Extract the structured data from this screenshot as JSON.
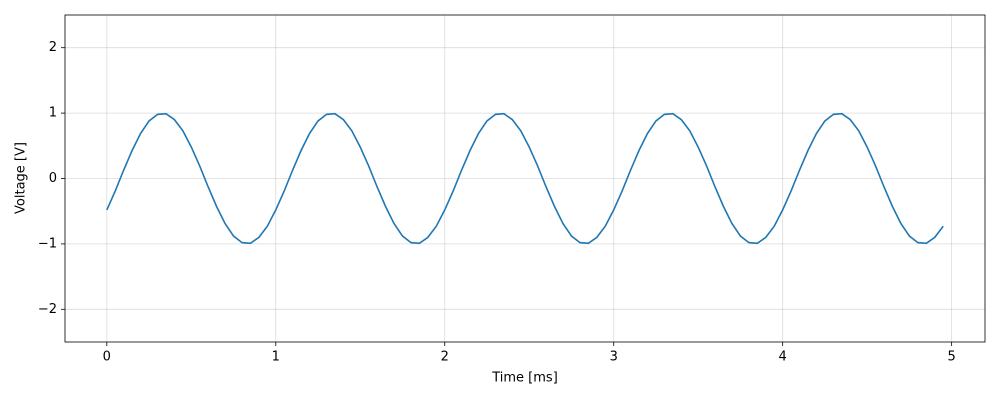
{
  "chart_data": {
    "type": "line",
    "xlabel": "Time [ms]",
    "ylabel": "Voltage [V]",
    "x": [
      0,
      0.05,
      0.1,
      0.15,
      0.2,
      0.25,
      0.3,
      0.35,
      0.4,
      0.45,
      0.5,
      0.55,
      0.6,
      0.65,
      0.7,
      0.75,
      0.8,
      0.85,
      0.9,
      0.95,
      1,
      1.05,
      1.1,
      1.15,
      1.2,
      1.25,
      1.3,
      1.35,
      1.4,
      1.45,
      1.5,
      1.55,
      1.6,
      1.65,
      1.7,
      1.75,
      1.8,
      1.85,
      1.9,
      1.95,
      2,
      2.05,
      2.1,
      2.15,
      2.2,
      2.25,
      2.3,
      2.35,
      2.4,
      2.45,
      2.5,
      2.55,
      2.6,
      2.65,
      2.7,
      2.75,
      2.8,
      2.85,
      2.9,
      2.95,
      3,
      3.05,
      3.1,
      3.15,
      3.2,
      3.25,
      3.3,
      3.35,
      3.4,
      3.45,
      3.5,
      3.55,
      3.6,
      3.65,
      3.7,
      3.75,
      3.8,
      3.85,
      3.9,
      3.95,
      4,
      4.05,
      4.1,
      4.15,
      4.2,
      4.25,
      4.3,
      4.35,
      4.4,
      4.45,
      4.5,
      4.55,
      4.6,
      4.65,
      4.7,
      4.75,
      4.8,
      4.85,
      4.9,
      4.95
    ],
    "series": [
      {
        "color": "#1f77b4",
        "values": [
          -0.48,
          -0.19,
          0.13,
          0.43,
          0.69,
          0.88,
          0.98,
          0.99,
          0.9,
          0.73,
          0.48,
          0.19,
          -0.13,
          -0.43,
          -0.69,
          -0.88,
          -0.98,
          -0.99,
          -0.9,
          -0.73,
          -0.48,
          -0.19,
          0.13,
          0.43,
          0.69,
          0.88,
          0.98,
          0.99,
          0.9,
          0.73,
          0.48,
          0.19,
          -0.13,
          -0.43,
          -0.69,
          -0.88,
          -0.98,
          -0.99,
          -0.9,
          -0.73,
          -0.48,
          -0.19,
          0.13,
          0.43,
          0.69,
          0.88,
          0.98,
          0.99,
          0.9,
          0.73,
          0.48,
          0.19,
          -0.13,
          -0.43,
          -0.69,
          -0.88,
          -0.98,
          -0.99,
          -0.9,
          -0.73,
          -0.48,
          -0.19,
          0.13,
          0.43,
          0.69,
          0.88,
          0.98,
          0.99,
          0.9,
          0.73,
          0.48,
          0.19,
          -0.13,
          -0.43,
          -0.69,
          -0.88,
          -0.98,
          -0.99,
          -0.9,
          -0.73,
          -0.48,
          -0.19,
          0.13,
          0.43,
          0.69,
          0.88,
          0.98,
          0.99,
          0.9,
          0.73,
          0.48,
          0.19,
          -0.13,
          -0.43,
          -0.69,
          -0.88,
          -0.98,
          -0.99,
          -0.9,
          -0.73
        ]
      }
    ],
    "xlim": [
      -0.2475,
      5.1975
    ],
    "xticks": [
      0,
      1,
      2,
      3,
      4,
      5
    ],
    "ylim": [
      -2.5,
      2.5
    ],
    "yticks": [
      {
        "value": -2,
        "label": "−2"
      },
      {
        "value": -1,
        "label": "−1"
      },
      0,
      1,
      2
    ],
    "grid": true
  }
}
